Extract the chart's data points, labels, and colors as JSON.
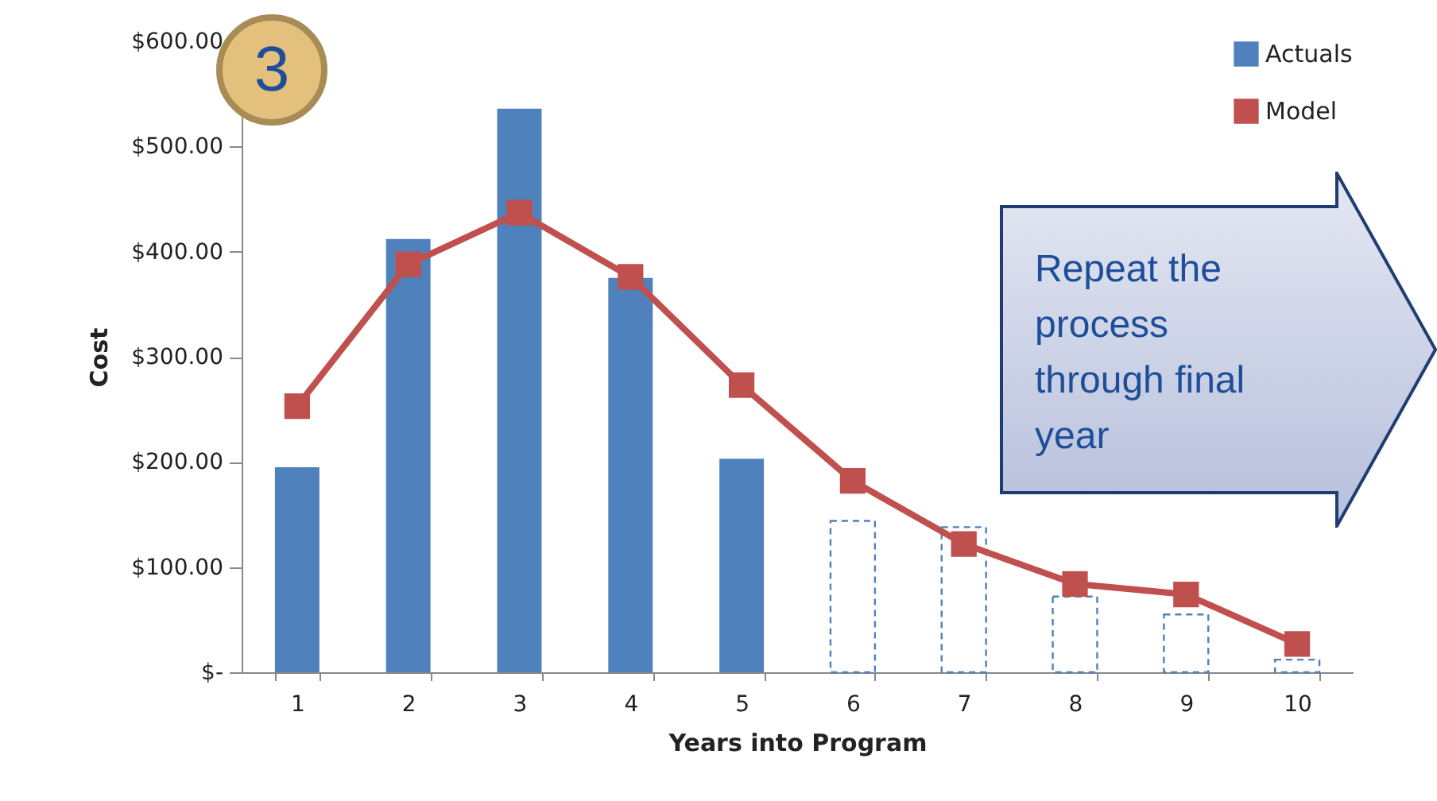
{
  "chart_data": {
    "type": "bar",
    "xlabel": "Years into Program",
    "ylabel": "Cost",
    "categories": [
      "1",
      "2",
      "3",
      "4",
      "5",
      "6",
      "7",
      "8",
      "9",
      "10"
    ],
    "series": [
      {
        "name": "Actuals",
        "color": "#4f81bd",
        "values": [
          195,
          412,
          536,
          375,
          203,
          null,
          null,
          null,
          null,
          null
        ]
      },
      {
        "color": "#4f81bd",
        "line_style": "dashed",
        "values": [
          null,
          null,
          null,
          null,
          null,
          144,
          138,
          72,
          55,
          12
        ]
      },
      {
        "name": "Model",
        "type": "line",
        "color": "#c0504d",
        "marker": "square",
        "values": [
          253,
          388,
          437,
          376,
          273,
          182,
          122,
          84,
          74,
          27
        ]
      }
    ],
    "ylim": [
      0,
      600
    ],
    "yticks": [
      {
        "value": 0,
        "label": "$-"
      },
      {
        "value": 100,
        "label": "$100.00"
      },
      {
        "value": 200,
        "label": "$200.00"
      },
      {
        "value": 300,
        "label": "$300.00"
      },
      {
        "value": 400,
        "label": "$400.00"
      },
      {
        "value": 500,
        "label": "$500.00"
      },
      {
        "value": 600,
        "label": "$600.00"
      }
    ],
    "grid": false,
    "legend": "top right",
    "annotations": [
      "3",
      "Repeat the process through final year"
    ]
  }
}
